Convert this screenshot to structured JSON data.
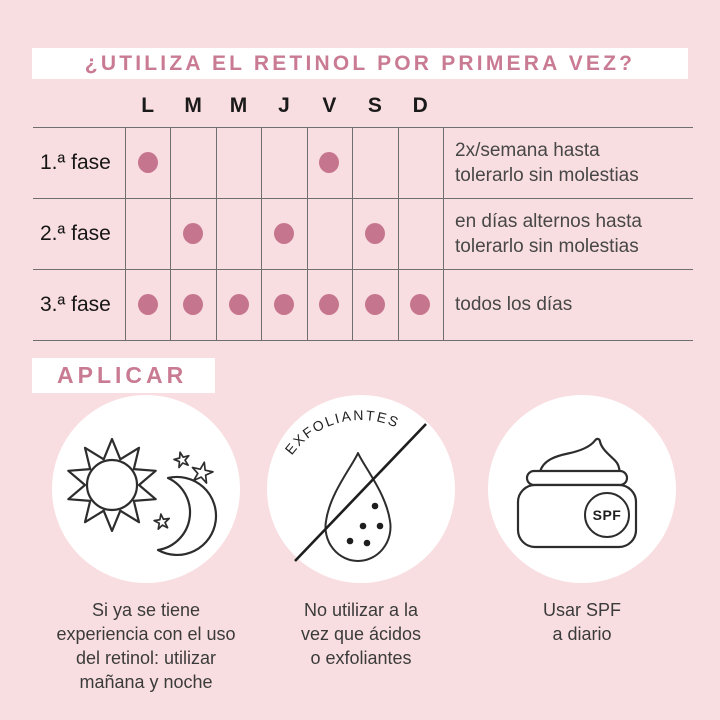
{
  "title": "¿UTILIZA EL RETINOL POR PRIMERA VEZ?",
  "section": {
    "aplicar_label": "APLICAR"
  },
  "table": {
    "days": [
      "L",
      "M",
      "M",
      "J",
      "V",
      "S",
      "D"
    ],
    "rows": [
      {
        "label": "1.ª fase",
        "dots": [
          1,
          0,
          0,
          0,
          1,
          0,
          0
        ],
        "note": [
          "2x/semana hasta",
          "tolerarlo sin molestias"
        ]
      },
      {
        "label": "2.ª fase",
        "dots": [
          0,
          1,
          0,
          1,
          0,
          1,
          0
        ],
        "note": [
          "en días alternos hasta",
          "tolerarlo sin molestias"
        ]
      },
      {
        "label": "3.ª fase",
        "dots": [
          1,
          1,
          1,
          1,
          1,
          1,
          1
        ],
        "note": [
          "todos los días"
        ]
      }
    ]
  },
  "cards": [
    {
      "icon": "sun-moon-icon",
      "caption": [
        "Si ya se tiene",
        "experiencia con el uso",
        "del retinol: utilizar",
        "mañana y noche"
      ]
    },
    {
      "icon": "no-exfoliants-icon",
      "badge": "EXFOLIANTES",
      "caption": [
        "No utilizar a la",
        "vez que ácidos",
        "o exfoliantes"
      ]
    },
    {
      "icon": "spf-jar-icon",
      "badge": "SPF",
      "caption": [
        "Usar SPF",
        "a diario"
      ]
    }
  ],
  "colors": {
    "background": "#f9dee1",
    "accent_pink": "#ca7b94",
    "dot_pink": "#c6758f",
    "grid_gray": "#6f6f6f",
    "text_dark": "#3b3b3b",
    "icon_stroke": "#2d2d2d"
  }
}
